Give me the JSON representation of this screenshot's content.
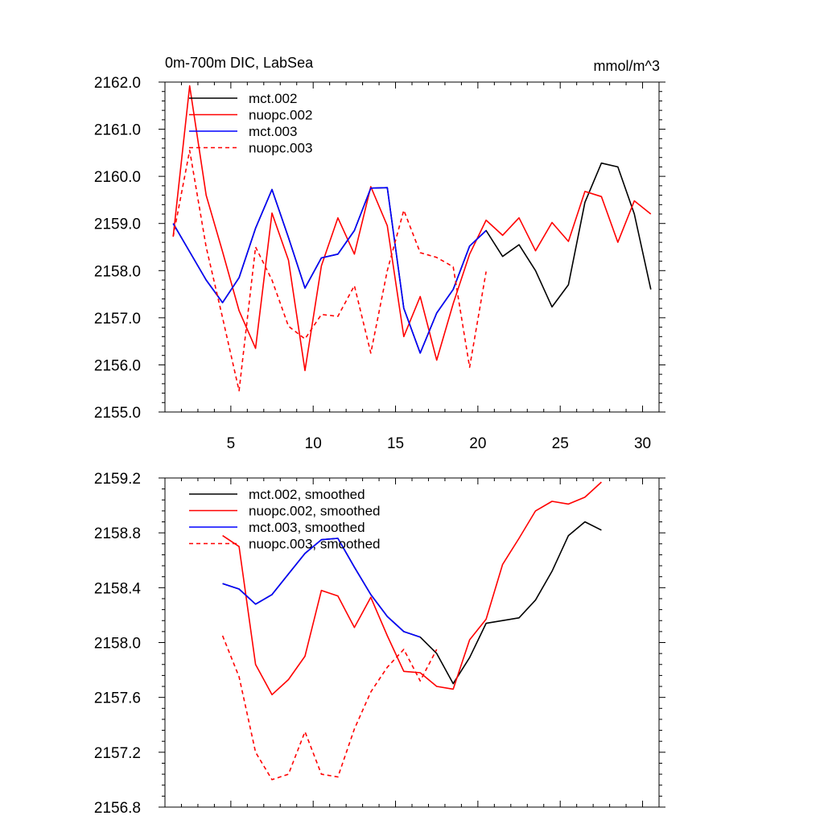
{
  "colors": {
    "black": "#000000",
    "red": "#ff0000",
    "blue": "#0000ff"
  },
  "chart_data": [
    {
      "type": "line",
      "title": "0m-700m DIC, LabSea",
      "units": "mmol/m^3",
      "xlim": [
        1,
        31
      ],
      "ylim": [
        2155.0,
        2162.0
      ],
      "xticks": [
        5,
        10,
        15,
        20,
        25,
        30
      ],
      "xtick_labels": [
        "5",
        "10",
        "15",
        "20",
        "25",
        "30"
      ],
      "yticks": [
        2155.0,
        2156.0,
        2157.0,
        2158.0,
        2159.0,
        2160.0,
        2161.0,
        2162.0
      ],
      "ytick_labels": [
        "2155.0",
        "2156.0",
        "2157.0",
        "2158.0",
        "2159.0",
        "2160.0",
        "2161.0",
        "2162.0"
      ],
      "legend_position": "top-left",
      "series": [
        {
          "name": "mct.002",
          "color": "#000000",
          "dash": "solid",
          "x": [
            1.5,
            2.5,
            3.5,
            4.5,
            5.5,
            6.5,
            7.5,
            8.5,
            9.5,
            10.5,
            11.5,
            12.5,
            13.5,
            14.5,
            15.5,
            16.5,
            17.5,
            18.5,
            19.5,
            20.5,
            21.5,
            22.5,
            23.5,
            24.5,
            25.5,
            26.5,
            27.5,
            28.5,
            29.5,
            30.5
          ],
          "values": [
            2159.0,
            2158.4,
            2157.8,
            2157.32,
            2157.85,
            2158.9,
            2159.72,
            2158.7,
            2157.63,
            2158.27,
            2158.35,
            2158.85,
            2159.75,
            2159.76,
            2157.2,
            2156.25,
            2157.1,
            2157.6,
            2158.52,
            2158.85,
            2158.3,
            2158.55,
            2158.0,
            2157.23,
            2157.7,
            2159.45,
            2160.28,
            2160.2,
            2159.2,
            2157.6
          ]
        },
        {
          "name": "nuopc.002",
          "color": "#ff0000",
          "dash": "solid",
          "x": [
            1.5,
            2.5,
            3.5,
            4.5,
            5.5,
            6.5,
            7.5,
            8.5,
            9.5,
            10.5,
            11.5,
            12.5,
            13.5,
            14.5,
            15.5,
            16.5,
            17.5,
            18.5,
            19.5,
            20.5,
            21.5,
            22.5,
            23.5,
            24.5,
            25.5,
            26.5,
            27.5,
            28.5,
            29.5,
            30.5
          ],
          "values": [
            2158.72,
            2161.92,
            2159.6,
            2158.4,
            2157.15,
            2156.35,
            2159.22,
            2158.22,
            2155.88,
            2158.1,
            2159.12,
            2158.35,
            2159.78,
            2158.95,
            2156.6,
            2157.45,
            2156.1,
            2157.3,
            2158.35,
            2159.07,
            2158.75,
            2159.12,
            2158.42,
            2159.02,
            2158.62,
            2159.68,
            2159.57,
            2158.6,
            2159.48,
            2159.2
          ]
        },
        {
          "name": "mct.003",
          "color": "#0000ff",
          "dash": "solid",
          "x": [
            1.5,
            2.5,
            3.5,
            4.5,
            5.5,
            6.5,
            7.5,
            8.5,
            9.5,
            10.5,
            11.5,
            12.5,
            13.5,
            14.5,
            15.5,
            16.5,
            17.5,
            18.5,
            19.5,
            20.5
          ],
          "values": [
            2159.0,
            2158.4,
            2157.8,
            2157.32,
            2157.85,
            2158.9,
            2159.72,
            2158.7,
            2157.63,
            2158.27,
            2158.35,
            2158.85,
            2159.75,
            2159.76,
            2157.2,
            2156.25,
            2157.1,
            2157.6,
            2158.52,
            2158.85
          ]
        },
        {
          "name": "nuopc.003",
          "color": "#ff0000",
          "dash": "dashed",
          "x": [
            1.5,
            2.5,
            3.5,
            4.5,
            5.5,
            6.5,
            7.5,
            8.5,
            9.5,
            10.5,
            11.5,
            12.5,
            13.5,
            14.5,
            15.5,
            16.5,
            17.5,
            18.5,
            19.5,
            20.5
          ],
          "values": [
            2158.72,
            2160.55,
            2158.5,
            2157.0,
            2155.45,
            2158.5,
            2157.8,
            2156.82,
            2156.55,
            2157.07,
            2157.03,
            2157.68,
            2156.25,
            2158.0,
            2159.28,
            2158.38,
            2158.28,
            2158.08,
            2155.95,
            2157.98
          ]
        }
      ]
    },
    {
      "type": "line",
      "title": "",
      "xlim": [
        1,
        31
      ],
      "ylim": [
        2156.8,
        2159.2
      ],
      "xticks": [
        5,
        10,
        15,
        20,
        25,
        30
      ],
      "xtick_labels": [],
      "yticks": [
        2156.8,
        2157.2,
        2157.6,
        2158.0,
        2158.4,
        2158.8,
        2159.2
      ],
      "ytick_labels": [
        "2156.8",
        "2157.2",
        "2157.6",
        "2158.0",
        "2158.4",
        "2158.8",
        "2159.2"
      ],
      "legend_position": "top-left",
      "series": [
        {
          "name": "mct.002, smoothed",
          "color": "#000000",
          "dash": "solid",
          "x": [
            4.5,
            5.5,
            6.5,
            7.5,
            8.5,
            9.5,
            10.5,
            11.5,
            12.5,
            13.5,
            14.5,
            15.5,
            16.5,
            17.5,
            18.5,
            19.5,
            20.5,
            21.5,
            22.5,
            23.5,
            24.5,
            25.5,
            26.5,
            27.5
          ],
          "values": [
            2158.43,
            2158.39,
            2158.28,
            2158.35,
            2158.5,
            2158.65,
            2158.75,
            2158.76,
            2158.55,
            2158.35,
            2158.19,
            2158.08,
            2158.04,
            2157.92,
            2157.7,
            2157.89,
            2158.14,
            2158.16,
            2158.18,
            2158.31,
            2158.52,
            2158.78,
            2158.88,
            2158.82
          ]
        },
        {
          "name": "nuopc.002, smoothed",
          "color": "#ff0000",
          "dash": "solid",
          "x": [
            4.5,
            5.5,
            6.5,
            7.5,
            8.5,
            9.5,
            10.5,
            11.5,
            12.5,
            13.5,
            14.5,
            15.5,
            16.5,
            17.5,
            18.5,
            19.5,
            20.5,
            21.5,
            22.5,
            23.5,
            24.5,
            25.5,
            26.5,
            27.5
          ],
          "values": [
            2158.78,
            2158.7,
            2157.84,
            2157.62,
            2157.73,
            2157.9,
            2158.38,
            2158.34,
            2158.11,
            2158.33,
            2158.05,
            2157.79,
            2157.78,
            2157.68,
            2157.66,
            2158.02,
            2158.17,
            2158.57,
            2158.76,
            2158.96,
            2159.03,
            2159.01,
            2159.06,
            2159.17
          ]
        },
        {
          "name": "mct.003, smoothed",
          "color": "#0000ff",
          "dash": "solid",
          "x": [
            4.5,
            5.5,
            6.5,
            7.5,
            8.5,
            9.5,
            10.5,
            11.5,
            12.5,
            13.5,
            14.5,
            15.5,
            16.5
          ],
          "values": [
            2158.43,
            2158.39,
            2158.28,
            2158.35,
            2158.5,
            2158.65,
            2158.75,
            2158.76,
            2158.55,
            2158.35,
            2158.19,
            2158.08,
            2158.04
          ]
        },
        {
          "name": "nuopc.003, smoothed",
          "color": "#ff0000",
          "dash": "dashed",
          "x": [
            4.5,
            5.5,
            6.5,
            7.5,
            8.5,
            9.5,
            10.5,
            11.5,
            12.5,
            13.5,
            14.5,
            15.5,
            16.5,
            17.5
          ],
          "values": [
            2158.05,
            2157.75,
            2157.2,
            2157.0,
            2157.04,
            2157.35,
            2157.04,
            2157.02,
            2157.37,
            2157.64,
            2157.82,
            2157.95,
            2157.72,
            2157.95
          ]
        }
      ]
    }
  ]
}
